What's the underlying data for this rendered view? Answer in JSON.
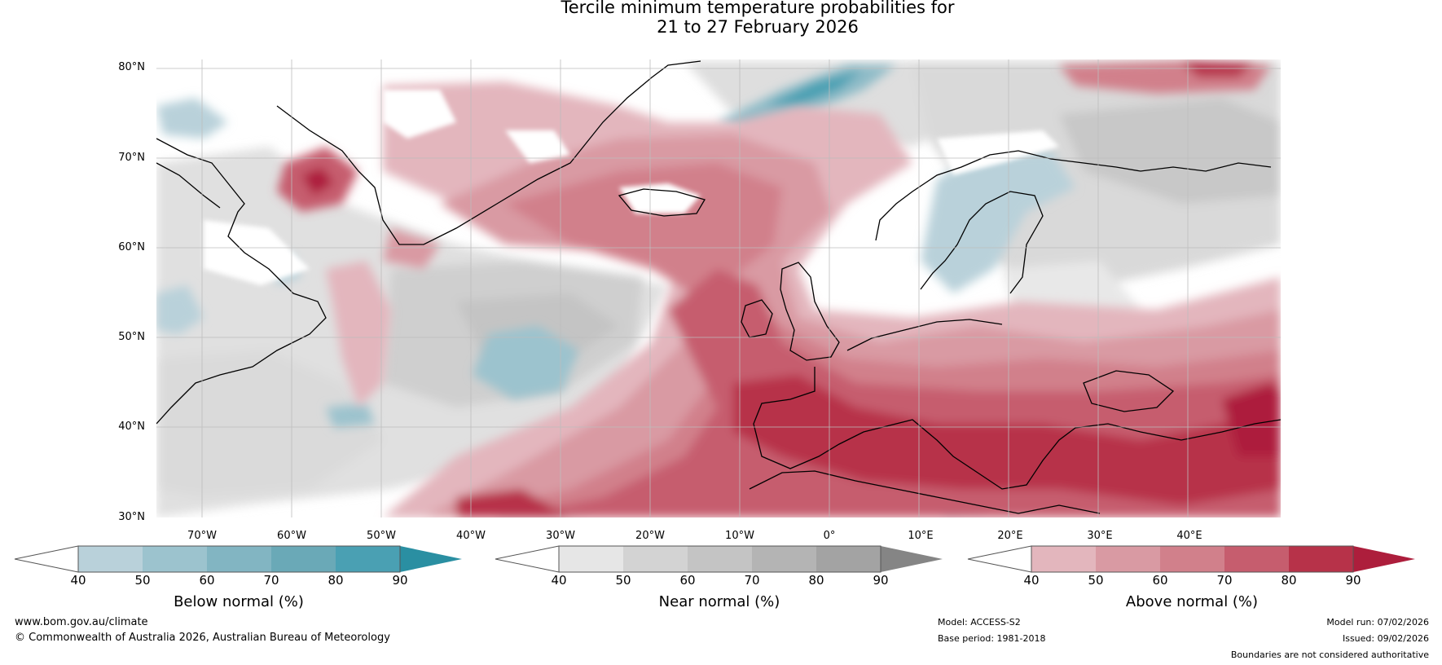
{
  "title": {
    "line1": "Tercile minimum temperature probabilities for",
    "line2": "21 to 27 February 2026"
  },
  "map": {
    "lat_labels": [
      "80°N",
      "70°N",
      "60°N",
      "50°N",
      "40°N",
      "30°N"
    ],
    "lon_labels": [
      "70°W",
      "60°W",
      "50°W",
      "40°W",
      "30°W",
      "20°W",
      "10°W",
      "0°",
      "10°E",
      "20°E",
      "30°E",
      "40°E"
    ]
  },
  "colorbars": {
    "below": {
      "label": "Below normal (%)",
      "ticks": [
        "40",
        "50",
        "60",
        "70",
        "80",
        "90"
      ],
      "colors": [
        "#ffffff",
        "#b9d1da",
        "#9cc3ce",
        "#82b5c2",
        "#6aa9b7",
        "#4aa0b3",
        "#2a8fa2"
      ]
    },
    "near": {
      "label": "Near normal (%)",
      "ticks": [
        "40",
        "50",
        "60",
        "70",
        "80",
        "90"
      ],
      "colors": [
        "#ffffff",
        "#e6e6e6",
        "#d3d3d3",
        "#c4c4c4",
        "#b4b4b4",
        "#a3a3a3",
        "#858585"
      ]
    },
    "above": {
      "label": "Above normal (%)",
      "ticks": [
        "40",
        "50",
        "60",
        "70",
        "80",
        "90"
      ],
      "colors": [
        "#ffffff",
        "#e3b6bd",
        "#d99aa3",
        "#d1808b",
        "#c65d6e",
        "#b73249",
        "#ad1e3c"
      ]
    }
  },
  "footer": {
    "url": "www.bom.gov.au/climate",
    "copyright": "© Commonwealth of Australia 2026, Australian Bureau of Meteorology",
    "model": "Model: ACCESS-S2",
    "base_period": "Base period: 1981-2018",
    "model_run": "Model run: 07/02/2026",
    "issued": "Issued: 09/02/2026",
    "disclaimer": "Boundaries are not considered authoritative"
  }
}
